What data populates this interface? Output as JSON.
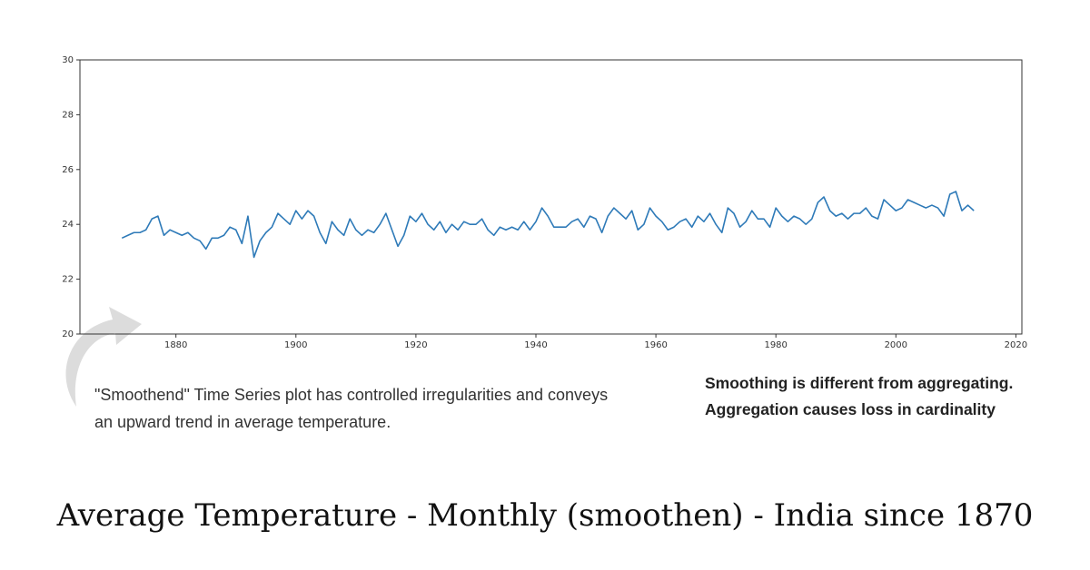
{
  "chart_data": {
    "type": "line",
    "title": "Average Temperature - Monthly (smoothen) - India since 1870",
    "annotations": [
      "\"Smoothend\" Time Series plot has controlled irregularities and conveys an upward trend in average temperature.",
      "Smoothing is different from aggregating. Aggregation causes loss in cardinality"
    ],
    "color": "#2e7ab8",
    "xlim": [
      1864,
      2021
    ],
    "xticks": [
      1880,
      1900,
      1920,
      1940,
      1960,
      1980,
      2000,
      2020
    ],
    "ylim": [
      20,
      30
    ],
    "yticks": [
      20,
      22,
      24,
      26,
      28,
      30
    ],
    "x": [
      1871,
      1872,
      1873,
      1874,
      1875,
      1876,
      1877,
      1878,
      1879,
      1880,
      1881,
      1882,
      1883,
      1884,
      1885,
      1886,
      1887,
      1888,
      1889,
      1890,
      1891,
      1892,
      1893,
      1894,
      1895,
      1896,
      1897,
      1898,
      1899,
      1900,
      1901,
      1902,
      1903,
      1904,
      1905,
      1906,
      1907,
      1908,
      1909,
      1910,
      1911,
      1912,
      1913,
      1914,
      1915,
      1916,
      1917,
      1918,
      1919,
      1920,
      1921,
      1922,
      1923,
      1924,
      1925,
      1926,
      1927,
      1928,
      1929,
      1930,
      1931,
      1932,
      1933,
      1934,
      1935,
      1936,
      1937,
      1938,
      1939,
      1940,
      1941,
      1942,
      1943,
      1944,
      1945,
      1946,
      1947,
      1948,
      1949,
      1950,
      1951,
      1952,
      1953,
      1954,
      1955,
      1956,
      1957,
      1958,
      1959,
      1960,
      1961,
      1962,
      1963,
      1964,
      1965,
      1966,
      1967,
      1968,
      1969,
      1970,
      1971,
      1972,
      1973,
      1974,
      1975,
      1976,
      1977,
      1978,
      1979,
      1980,
      1981,
      1982,
      1983,
      1984,
      1985,
      1986,
      1987,
      1988,
      1989,
      1990,
      1991,
      1992,
      1993,
      1994,
      1995,
      1996,
      1997,
      1998,
      1999,
      2000,
      2001,
      2002,
      2003,
      2004,
      2005,
      2006,
      2007,
      2008,
      2009,
      2010,
      2011,
      2012,
      2013
    ],
    "values": [
      23.5,
      23.6,
      23.7,
      23.7,
      23.8,
      24.2,
      24.3,
      23.6,
      23.8,
      23.7,
      23.6,
      23.7,
      23.5,
      23.4,
      23.1,
      23.5,
      23.5,
      23.6,
      23.9,
      23.8,
      23.3,
      24.3,
      22.8,
      23.4,
      23.7,
      23.9,
      24.4,
      24.2,
      24.0,
      24.5,
      24.2,
      24.5,
      24.3,
      23.7,
      23.3,
      24.1,
      23.8,
      23.6,
      24.2,
      23.8,
      23.6,
      23.8,
      23.7,
      24.0,
      24.4,
      23.8,
      23.2,
      23.6,
      24.3,
      24.1,
      24.4,
      24.0,
      23.8,
      24.1,
      23.7,
      24.0,
      23.8,
      24.1,
      24.0,
      24.0,
      24.2,
      23.8,
      23.6,
      23.9,
      23.8,
      23.9,
      23.8,
      24.1,
      23.8,
      24.1,
      24.6,
      24.3,
      23.9,
      23.9,
      23.9,
      24.1,
      24.2,
      23.9,
      24.3,
      24.2,
      23.7,
      24.3,
      24.6,
      24.4,
      24.2,
      24.5,
      23.8,
      24.0,
      24.6,
      24.3,
      24.1,
      23.8,
      23.9,
      24.1,
      24.2,
      23.9,
      24.3,
      24.1,
      24.4,
      24.0,
      23.7,
      24.6,
      24.4,
      23.9,
      24.1,
      24.5,
      24.2,
      24.2,
      23.9,
      24.6,
      24.3,
      24.1,
      24.3,
      24.2,
      24.0,
      24.2,
      24.8,
      25.0,
      24.5,
      24.3,
      24.4,
      24.2,
      24.4,
      24.4,
      24.6,
      24.3,
      24.2,
      24.9,
      24.7,
      24.5,
      24.6,
      24.9,
      24.8,
      24.7,
      24.6,
      24.7,
      24.6,
      24.3,
      25.1,
      25.2,
      24.5,
      24.7,
      24.5
    ]
  }
}
